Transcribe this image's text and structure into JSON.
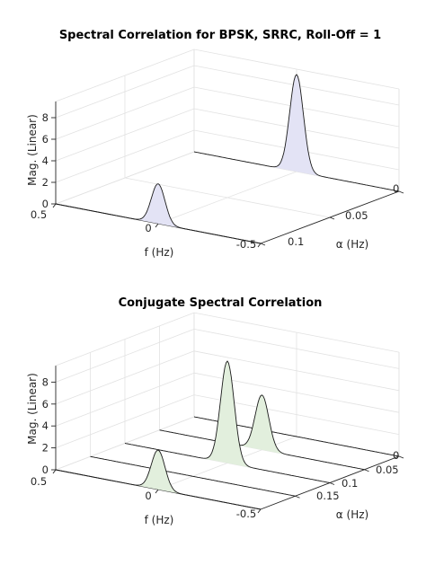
{
  "chart_data": [
    {
      "type": "area",
      "subtype": "3d-waterfall",
      "title": "Spectral Correlation for BPSK, SRRC, Roll-Off = 1",
      "xlabel": "f (Hz)",
      "ylabel": "α (Hz)",
      "zlabel": "Mag. (Linear)",
      "f_ticks": [
        "0.5",
        "0",
        "-0.5"
      ],
      "f_lim": [
        -0.5,
        0.5
      ],
      "alpha_ticks": [
        "0",
        "0.05",
        "0.1"
      ],
      "alpha_lim": [
        0,
        0.1
      ],
      "z_ticks": [
        "0",
        "2",
        "4",
        "6",
        "8"
      ],
      "z_lim": [
        0,
        9.5
      ],
      "grid": true,
      "fill_color": "#e3e3f5",
      "series": [
        {
          "alpha": 0.0,
          "peak_f": 0.0,
          "peak_value": 9.0,
          "width": 0.11
        },
        {
          "alpha": 0.1,
          "peak_f": 0.0,
          "peak_value": 3.7,
          "width": 0.11
        }
      ]
    },
    {
      "type": "area",
      "subtype": "3d-waterfall",
      "title": "Conjugate Spectral Correlation",
      "xlabel": "f (Hz)",
      "ylabel": "α (Hz)",
      "zlabel": "Mag. (Linear)",
      "f_ticks": [
        "0.5",
        "0",
        "-0.5"
      ],
      "f_lim": [
        -0.5,
        0.5
      ],
      "alpha_ticks": [
        "0",
        "0.05",
        "0.1",
        "0.15"
      ],
      "alpha_lim": [
        0,
        0.2
      ],
      "z_ticks": [
        "0",
        "2",
        "4",
        "6",
        "8"
      ],
      "z_lim": [
        0,
        9.5
      ],
      "grid": true,
      "fill_color": "#e2efdd",
      "series": [
        {
          "alpha": 0.0,
          "peak_f": 0.0,
          "peak_value": 0.0,
          "width": 0.11
        },
        {
          "alpha": 0.05,
          "peak_f": 0.0,
          "peak_value": 5.0,
          "width": 0.11
        },
        {
          "alpha": 0.1,
          "peak_f": 0.0,
          "peak_value": 9.3,
          "width": 0.11
        },
        {
          "alpha": 0.15,
          "peak_f": 0.0,
          "peak_value": 0.0,
          "width": 0.11
        },
        {
          "alpha": 0.2,
          "peak_f": 0.0,
          "peak_value": 3.6,
          "width": 0.11
        }
      ]
    }
  ]
}
